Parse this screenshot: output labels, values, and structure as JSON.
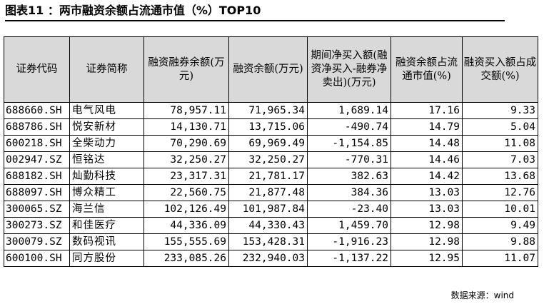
{
  "title": "图表11 ：两市融资余额占流通市值（%）TOP10",
  "headers": [
    "证券代码",
    "证券简称",
    "融资融券余额(万元)",
    "融资余额(万元)",
    "期间净买入额(融资净买入-融券净卖出)(万元)",
    "融资余额占流通市值(%)",
    "融资买入额占成交额(%)"
  ],
  "rows": [
    [
      "688660.SH",
      "电气风电",
      "78,957.11",
      "71,965.34",
      "1,689.14",
      "17.16",
      "9.33"
    ],
    [
      "688786.SH",
      "悦安新材",
      "14,130.71",
      "13,715.06",
      "-490.74",
      "14.79",
      "5.04"
    ],
    [
      "600218.SH",
      "全柴动力",
      "70,290.69",
      "69,969.49",
      "-1,154.85",
      "14.48",
      "11.08"
    ],
    [
      "002947.SZ",
      "恒铭达",
      "32,250.27",
      "32,250.27",
      "-770.31",
      "14.46",
      "7.03"
    ],
    [
      "688182.SH",
      "灿勤科技",
      "23,317.31",
      "21,781.17",
      "382.63",
      "14.42",
      "13.68"
    ],
    [
      "688097.SH",
      "博众精工",
      "22,560.75",
      "21,877.48",
      "384.36",
      "13.03",
      "12.76"
    ],
    [
      "300065.SZ",
      "海兰信",
      "102,126.49",
      "101,987.84",
      "-23.40",
      "13.03",
      "10.01"
    ],
    [
      "300273.SZ",
      "和佳医疗",
      "44,336.09",
      "44,330.43",
      "1,459.70",
      "12.98",
      "9.49"
    ],
    [
      "300079.SZ",
      "数码视讯",
      "155,555.69",
      "153,428.31",
      "-1,916.23",
      "12.98",
      "9.88"
    ],
    [
      "600100.SH",
      "同方股份",
      "233,085.26",
      "232,940.03",
      "-1,137.22",
      "12.95",
      "11.07"
    ]
  ],
  "source": "数据来源：wind"
}
